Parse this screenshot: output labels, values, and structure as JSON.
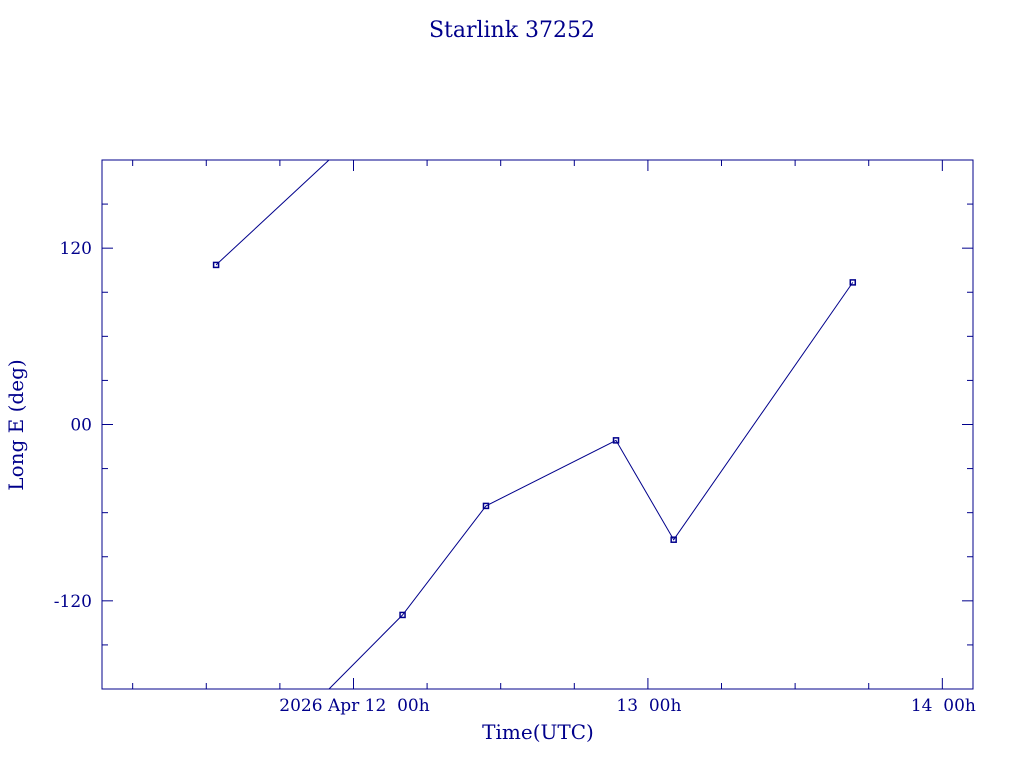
{
  "chart_data": {
    "type": "line",
    "title": "Starlink 37252",
    "xlabel": "Time(UTC)",
    "ylabel": "Long E (deg)",
    "ylim": [
      -180,
      180
    ],
    "xlim_hours": [
      -20.5,
      50.5
    ],
    "x_tick_labels": [
      {
        "hour": 0,
        "label": "2026 Apr 12  00h"
      },
      {
        "hour": 24,
        "label": "13  00h"
      },
      {
        "hour": 48,
        "label": "14  00h"
      }
    ],
    "y_tick_labels": [
      {
        "value": 120,
        "label": "120"
      },
      {
        "value": 0,
        "label": "00"
      },
      {
        "value": -120,
        "label": "-120"
      }
    ],
    "series": [
      {
        "segments": [
          [
            [
              -11.2,
              108.6
            ],
            [
              -2.0,
              180
            ]
          ],
          [
            [
              -2.0,
              -180
            ],
            [
              4.0,
              -129.6
            ],
            [
              10.8,
              -55.4
            ],
            [
              21.4,
              -10.8
            ],
            [
              26.1,
              -78.4
            ],
            [
              40.7,
              96.7
            ]
          ]
        ],
        "points": [
          [
            -11.2,
            108.6
          ],
          [
            4.0,
            -129.6
          ],
          [
            10.8,
            -55.4
          ],
          [
            21.4,
            -10.8
          ],
          [
            26.1,
            -78.4
          ],
          [
            40.7,
            96.7
          ]
        ]
      }
    ],
    "colors": {
      "axes": "#00008b",
      "line": "#00008b"
    },
    "grid": false,
    "legend": "none"
  }
}
